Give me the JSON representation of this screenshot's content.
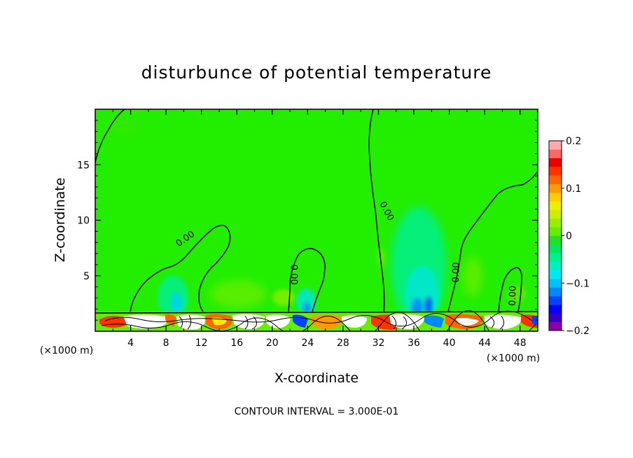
{
  "chart_data": {
    "type": "heatmap",
    "title": "disturbunce of potential temperature",
    "xlabel": "X-coordinate",
    "ylabel": "Z-coordinate",
    "x_unit_left": "(×1000 m)",
    "x_unit_right": "(×1000 m)",
    "xlim": [
      0,
      50
    ],
    "ylim": [
      0,
      20
    ],
    "x_ticks": [
      "4",
      "8",
      "12",
      "16",
      "20",
      "24",
      "28",
      "32",
      "36",
      "40",
      "44",
      "48"
    ],
    "x_tick_values": [
      4,
      8,
      12,
      16,
      20,
      24,
      28,
      32,
      36,
      40,
      44,
      48
    ],
    "y_ticks": [
      "5",
      "10",
      "15"
    ],
    "y_tick_values": [
      5,
      10,
      15
    ],
    "colorbar": {
      "min": -0.2,
      "max": 0.2,
      "labels": [
        "0.2",
        "0.1",
        "0",
        "−0.1",
        "−0.2"
      ],
      "label_values": [
        0.2,
        0.1,
        0,
        -0.1,
        -0.2
      ],
      "colors": [
        "#8800aa",
        "#3300cc",
        "#0000ff",
        "#0044ff",
        "#0088ff",
        "#00c0ff",
        "#00e8f0",
        "#00f0c0",
        "#00f090",
        "#00e860",
        "#22e028",
        "#66ee00",
        "#99ee00",
        "#ccee00",
        "#eeee00",
        "#ffcc00",
        "#ff9900",
        "#ff6600",
        "#ff3300",
        "#ee0000",
        "#ff6666",
        "#ffaaaa"
      ]
    },
    "background_color": "#22ee00",
    "contour_labels": [
      {
        "text": "0.00",
        "x": 10.2,
        "z": 8.3,
        "angle": -35
      },
      {
        "text": "0.00",
        "x": 22.4,
        "z": 5.1,
        "angle": 90
      },
      {
        "text": "0.00",
        "x": 32.9,
        "z": 10.8,
        "angle": 62
      },
      {
        "text": "0.00",
        "x": 40.8,
        "z": 5.3,
        "angle": -88
      },
      {
        "text": "0.00",
        "x": 47.2,
        "z": 3.2,
        "angle": -88
      }
    ],
    "contour_interval_text": "CONTOUR INTERVAL = 3.000E-01"
  }
}
